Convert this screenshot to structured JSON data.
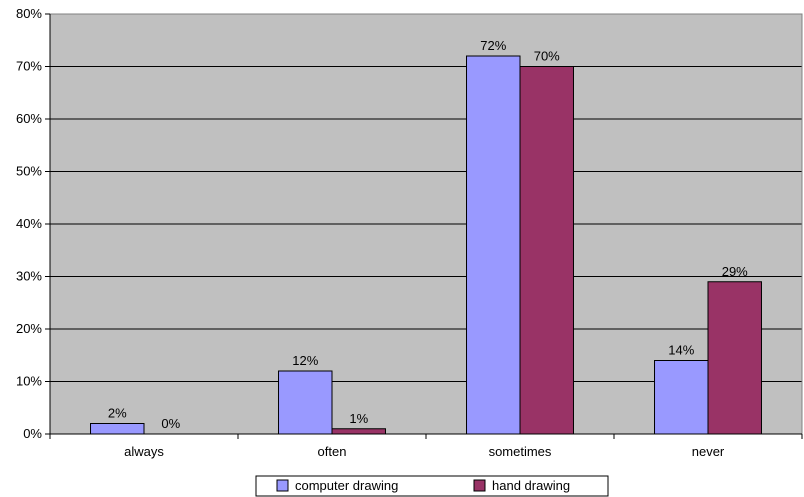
{
  "chart_data": {
    "type": "bar",
    "title": "",
    "xlabel": "",
    "ylabel": "",
    "categories": [
      "always",
      "often",
      "sometimes",
      "never"
    ],
    "series": [
      {
        "name": "computer drawing",
        "color": "#9999ff",
        "values": [
          2,
          12,
          72,
          14
        ],
        "labels": [
          "2%",
          "12%",
          "72%",
          "14%"
        ]
      },
      {
        "name": "hand drawing",
        "color": "#993366",
        "values": [
          0,
          1,
          70,
          29
        ],
        "labels": [
          "0%",
          "1%",
          "70%",
          "29%"
        ]
      }
    ],
    "ylim": [
      0,
      80
    ],
    "yticks": [
      0,
      10,
      20,
      30,
      40,
      50,
      60,
      70,
      80
    ],
    "ytick_labels": [
      "0%",
      "10%",
      "20%",
      "30%",
      "40%",
      "50%",
      "60%",
      "70%",
      "80%"
    ],
    "grid": true,
    "plot_background": "#c0c0c0",
    "legend_position": "bottom"
  }
}
